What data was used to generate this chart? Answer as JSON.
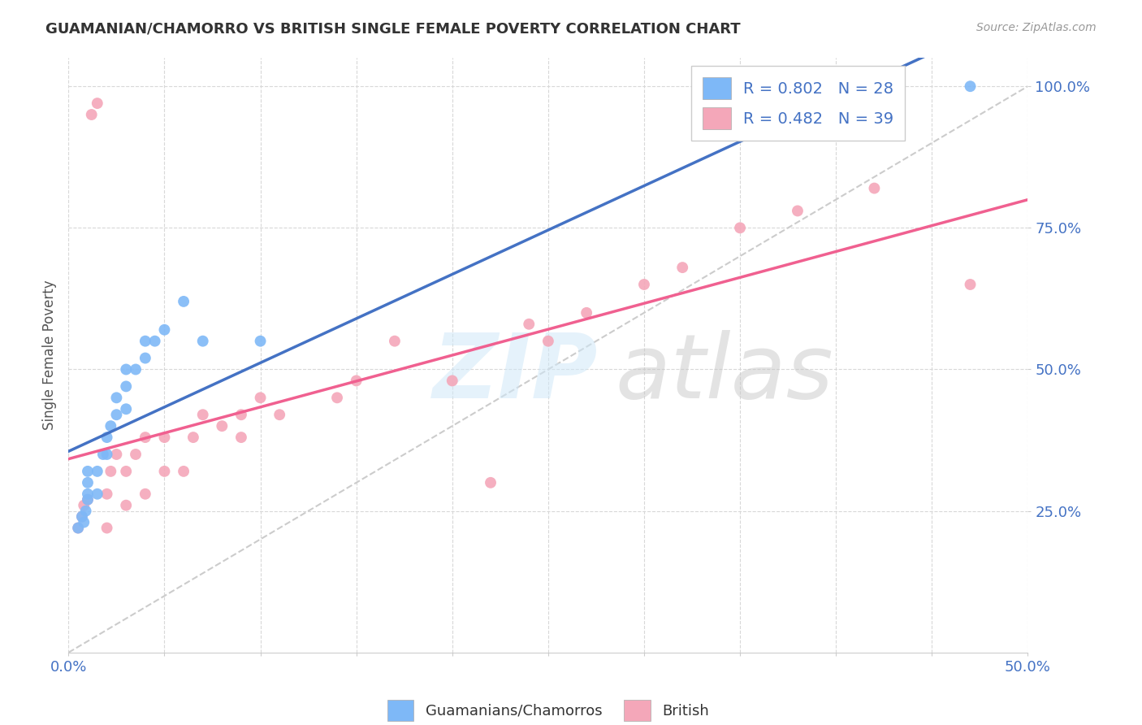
{
  "title": "GUAMANIAN/CHAMORRO VS BRITISH SINGLE FEMALE POVERTY CORRELATION CHART",
  "source": "Source: ZipAtlas.com",
  "ylabel": "Single Female Poverty",
  "xlim": [
    0.0,
    0.5
  ],
  "ylim": [
    0.0,
    1.05
  ],
  "xticks": [
    0.0,
    0.05,
    0.1,
    0.15,
    0.2,
    0.25,
    0.3,
    0.35,
    0.4,
    0.45,
    0.5
  ],
  "xticklabels": [
    "0.0%",
    "",
    "",
    "",
    "",
    "",
    "",
    "",
    "",
    "",
    "50.0%"
  ],
  "ytick_positions": [
    0.25,
    0.5,
    0.75,
    1.0
  ],
  "yticklabels": [
    "25.0%",
    "50.0%",
    "75.0%",
    "100.0%"
  ],
  "guamanian_x": [
    0.005,
    0.007,
    0.008,
    0.009,
    0.01,
    0.01,
    0.01,
    0.01,
    0.015,
    0.015,
    0.018,
    0.02,
    0.02,
    0.022,
    0.025,
    0.025,
    0.03,
    0.03,
    0.03,
    0.035,
    0.04,
    0.04,
    0.045,
    0.05,
    0.06,
    0.07,
    0.1,
    0.47
  ],
  "guamanian_y": [
    0.22,
    0.24,
    0.23,
    0.25,
    0.27,
    0.28,
    0.3,
    0.32,
    0.28,
    0.32,
    0.35,
    0.35,
    0.38,
    0.4,
    0.42,
    0.45,
    0.43,
    0.47,
    0.5,
    0.5,
    0.52,
    0.55,
    0.55,
    0.57,
    0.62,
    0.55,
    0.55,
    1.0
  ],
  "british_x": [
    0.005,
    0.007,
    0.008,
    0.01,
    0.012,
    0.015,
    0.02,
    0.02,
    0.022,
    0.025,
    0.03,
    0.03,
    0.035,
    0.04,
    0.04,
    0.05,
    0.05,
    0.06,
    0.065,
    0.07,
    0.08,
    0.09,
    0.09,
    0.1,
    0.11,
    0.14,
    0.15,
    0.17,
    0.2,
    0.22,
    0.24,
    0.25,
    0.27,
    0.3,
    0.32,
    0.35,
    0.38,
    0.42,
    0.47
  ],
  "british_y": [
    0.22,
    0.24,
    0.26,
    0.27,
    0.95,
    0.97,
    0.22,
    0.28,
    0.32,
    0.35,
    0.26,
    0.32,
    0.35,
    0.28,
    0.38,
    0.32,
    0.38,
    0.32,
    0.38,
    0.42,
    0.4,
    0.38,
    0.42,
    0.45,
    0.42,
    0.45,
    0.48,
    0.55,
    0.48,
    0.3,
    0.58,
    0.55,
    0.6,
    0.65,
    0.68,
    0.75,
    0.78,
    0.82,
    0.65
  ],
  "guamanian_color": "#7eb8f7",
  "british_color": "#f4a7b9",
  "guamanian_line_color": "#4472c4",
  "british_line_color": "#f06090",
  "diagonal_color": "#cccccc",
  "R_guamanian": 0.802,
  "N_guamanian": 28,
  "R_british": 0.482,
  "N_british": 39,
  "legend_color": "#4472c4",
  "background_color": "#ffffff",
  "grid_color": "#d8d8d8"
}
